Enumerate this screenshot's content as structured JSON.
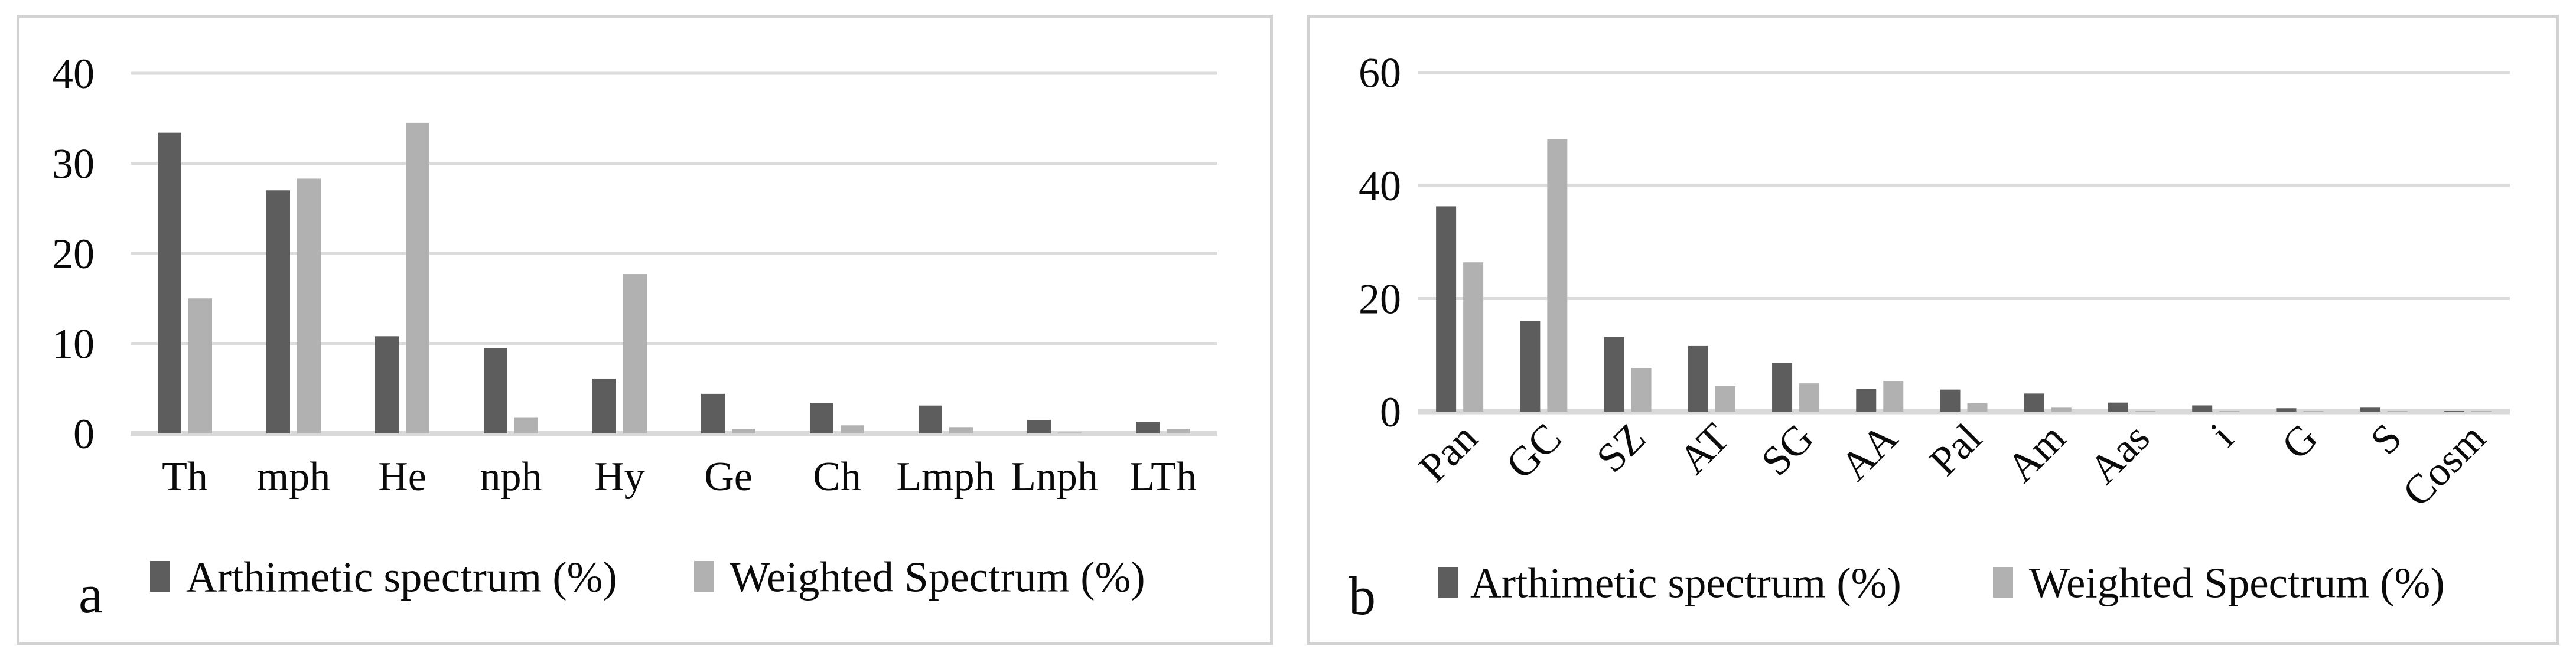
{
  "figure": {
    "description": "Two-panel grouped bar chart figure comparing arithmetic and weighted spectra",
    "colors": {
      "series_dark": "#5d5d5d",
      "series_light": "#b1b1b1",
      "gridline": "#dcdcdc",
      "axis_line": "#d9d9d9",
      "panel_border": "#d2d2d2",
      "text": "#0a0a0a",
      "background": "#ffffff"
    }
  },
  "chart_data": [
    {
      "type": "bar",
      "panel_label": "a",
      "title": "",
      "xlabel": "",
      "ylabel": "",
      "ylim": [
        0,
        40
      ],
      "yticks": [
        0,
        10,
        20,
        30,
        40
      ],
      "grid": true,
      "legend_position": "bottom",
      "category_label_rotation": 0,
      "categories": [
        "Th",
        "mph",
        "He",
        "nph",
        "Hy",
        "Ge",
        "Ch",
        "Lmph",
        "Lnph",
        "LTh"
      ],
      "series": [
        {
          "name": "Arthimetic spectrum (%)",
          "color": "#5d5d5d",
          "values": [
            33.4,
            27.0,
            10.8,
            9.5,
            6.1,
            4.4,
            3.4,
            3.1,
            1.5,
            1.3
          ]
        },
        {
          "name": "Weighted Spectrum (%)",
          "color": "#b1b1b1",
          "values": [
            15.0,
            28.3,
            34.5,
            1.8,
            17.7,
            0.5,
            0.9,
            0.7,
            0.1,
            0.5
          ]
        }
      ]
    },
    {
      "type": "bar",
      "panel_label": "b",
      "title": "",
      "xlabel": "",
      "ylabel": "",
      "ylim": [
        0,
        60
      ],
      "yticks": [
        0,
        20,
        40,
        60
      ],
      "grid": true,
      "legend_position": "bottom",
      "category_label_rotation": 45,
      "categories": [
        "Pan",
        "GC",
        "SZ",
        "AT",
        "SG",
        "AA",
        "Pal",
        "Am",
        "Aas",
        "i",
        "G",
        "S",
        "Cosm"
      ],
      "series": [
        {
          "name": "Arthimetic spectrum (%)",
          "color": "#5d5d5d",
          "values": [
            36.3,
            16.0,
            13.2,
            11.6,
            8.6,
            4.0,
            3.9,
            3.2,
            1.6,
            1.1,
            0.6,
            0.7,
            0.1
          ]
        },
        {
          "name": "Weighted Spectrum (%)",
          "color": "#b1b1b1",
          "values": [
            26.4,
            48.2,
            7.7,
            4.5,
            5.0,
            5.4,
            1.5,
            0.7,
            0.1,
            0.1,
            0.1,
            0.1,
            0.1
          ]
        }
      ]
    }
  ]
}
